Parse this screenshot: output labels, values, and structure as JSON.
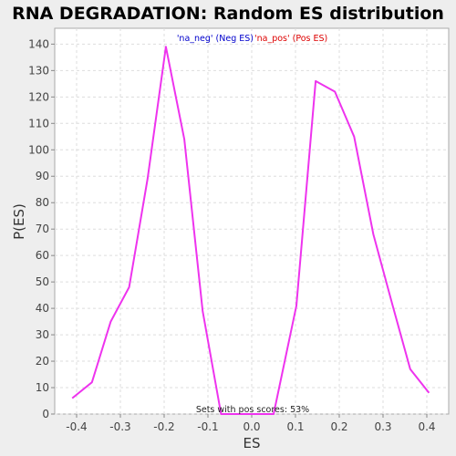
{
  "chart_data": {
    "type": "line",
    "title": "RNA DEGRADATION: Random ES distribution",
    "xlabel": "ES",
    "ylabel": "P(ES)",
    "xlim": [
      -0.45,
      0.45
    ],
    "ylim": [
      0,
      146
    ],
    "xticks": [
      -0.4,
      -0.3,
      -0.2,
      -0.1,
      0.0,
      0.1,
      0.2,
      0.3,
      0.4
    ],
    "xtick_labels": [
      "-0.4",
      "-0.3",
      "-0.2",
      "-0.1",
      "0.0",
      "0.1",
      "0.2",
      "0.3",
      "0.4"
    ],
    "yticks": [
      0,
      10,
      20,
      30,
      40,
      50,
      60,
      70,
      80,
      90,
      100,
      110,
      120,
      130,
      140
    ],
    "ytick_labels": [
      "0",
      "10",
      "20",
      "30",
      "40",
      "50",
      "60",
      "70",
      "80",
      "90",
      "100",
      "110",
      "120",
      "130",
      "140"
    ],
    "grid": true,
    "legend": {
      "position": "top-center",
      "entries": [
        {
          "label": "'na_neg' (Neg ES)",
          "color": "#0000cc"
        },
        {
          "label": "'na_pos' (Pos ES)",
          "color": "#dd0000"
        }
      ]
    },
    "annotation": "Sets with pos scores: 53%",
    "series": [
      {
        "color": "#ee33ee",
        "x": [
          -0.41,
          -0.365,
          -0.322,
          -0.28,
          -0.238,
          -0.196,
          -0.154,
          -0.112,
          -0.07,
          -0.03,
          0.01,
          0.05,
          0.102,
          0.146,
          0.19,
          0.234,
          0.278,
          0.322,
          0.362,
          0.405
        ],
        "y": [
          6,
          12,
          35,
          48,
          89,
          139,
          104,
          39,
          0,
          0,
          0,
          0,
          41,
          126,
          122,
          105,
          68,
          41,
          17,
          8
        ]
      }
    ]
  }
}
